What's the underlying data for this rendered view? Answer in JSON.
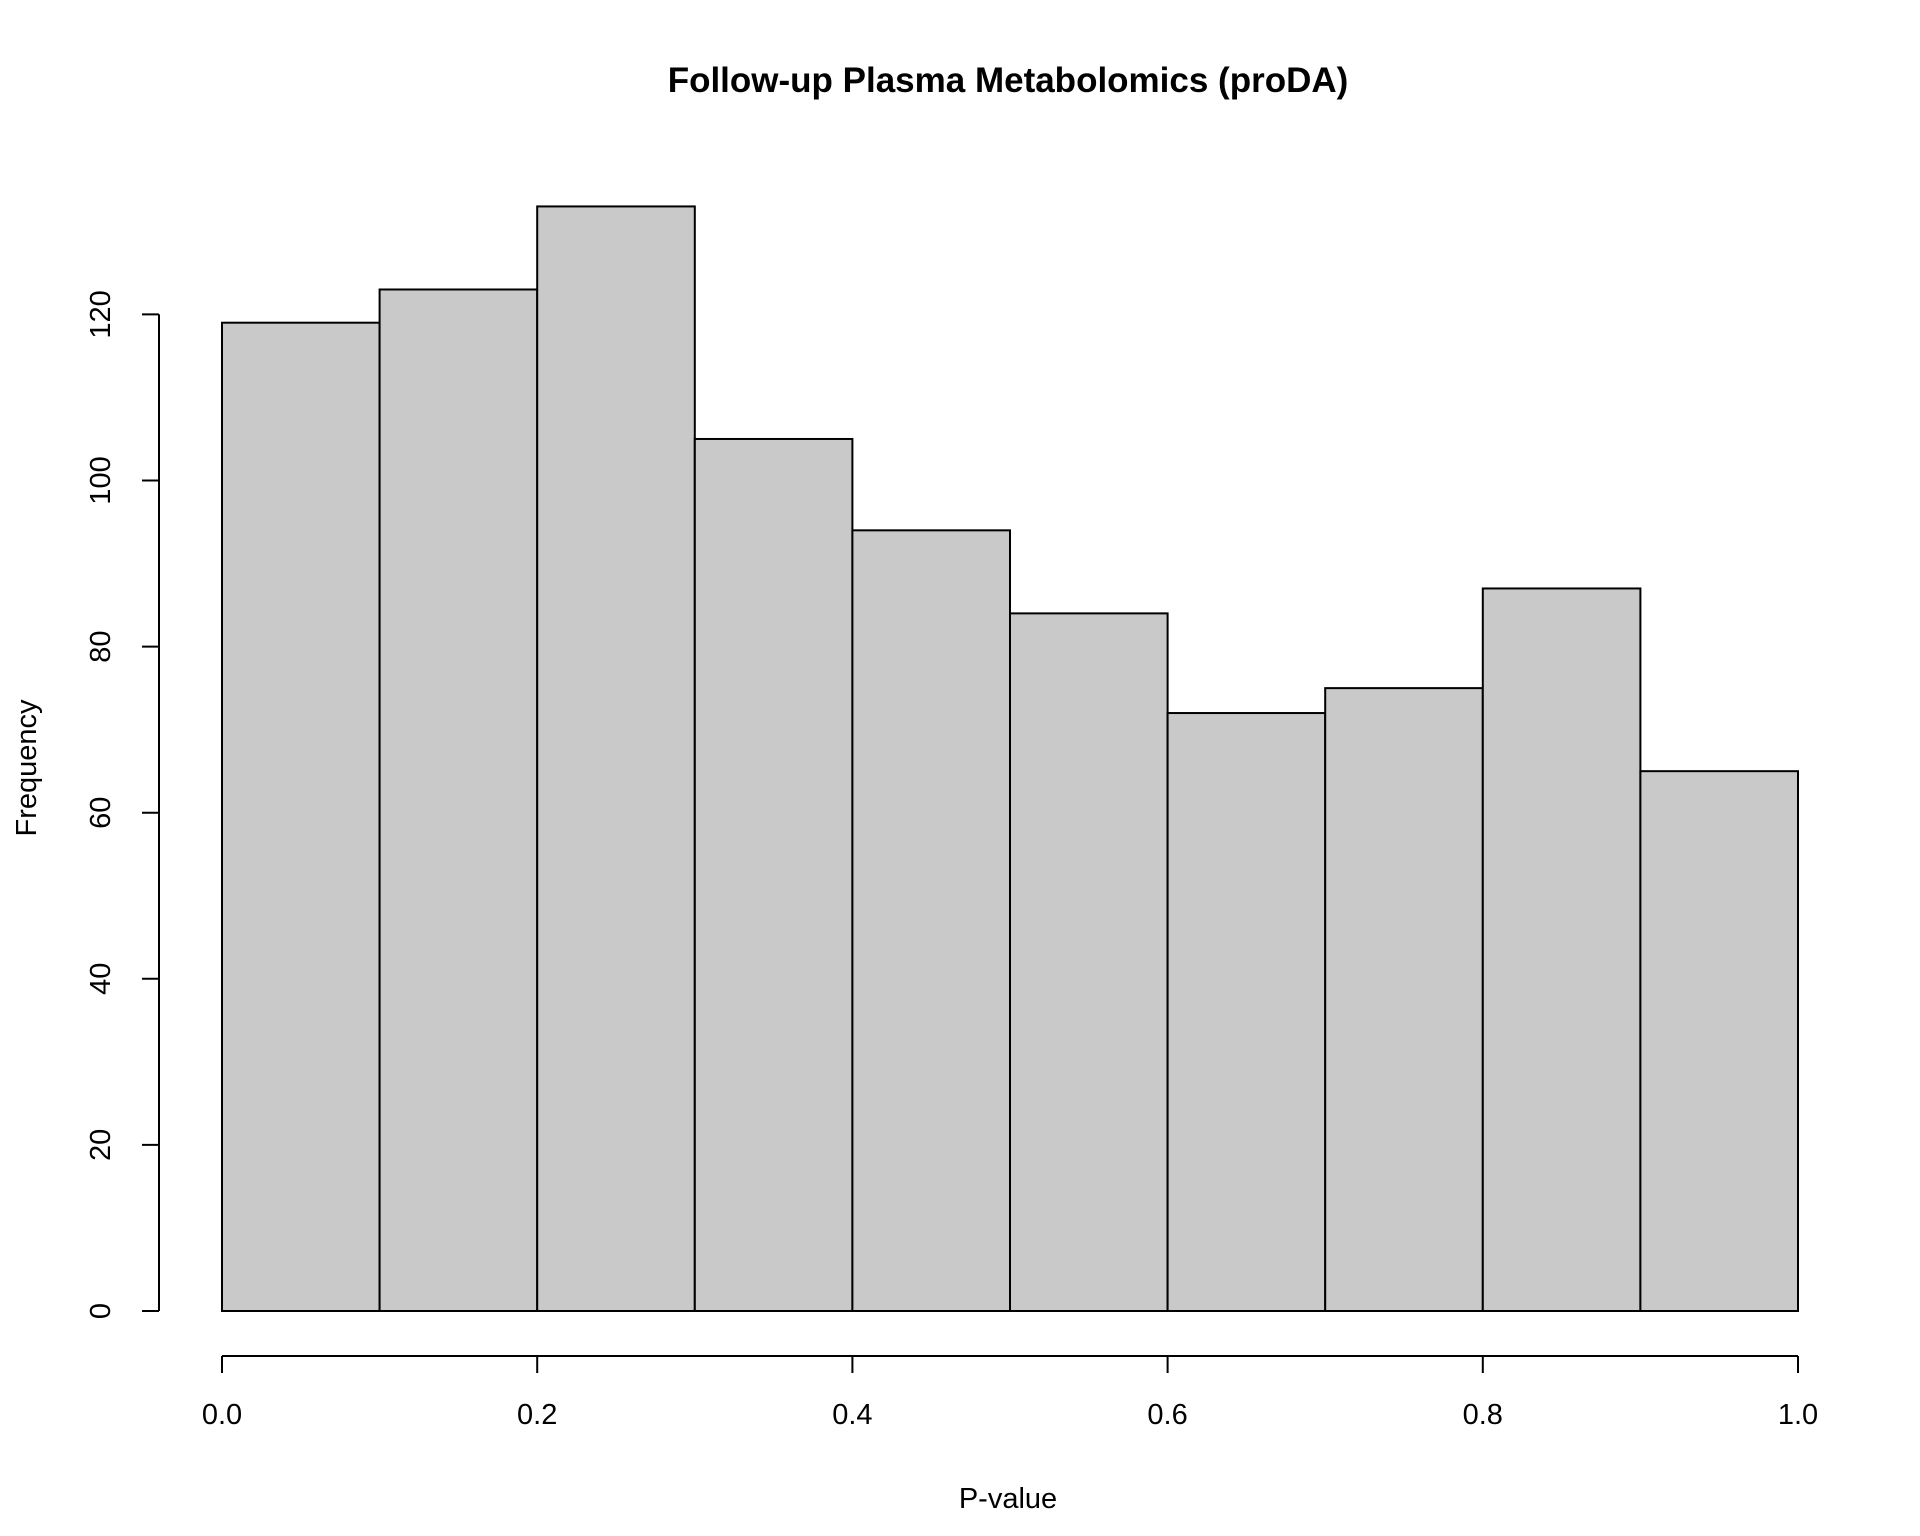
{
  "chart_data": {
    "type": "bar",
    "title": "Follow-up Plasma Metabolomics (proDA)",
    "xlabel": "P-value",
    "ylabel": "Frequency",
    "bins": [
      {
        "start": 0.0,
        "end": 0.1,
        "count": 119
      },
      {
        "start": 0.1,
        "end": 0.2,
        "count": 123
      },
      {
        "start": 0.2,
        "end": 0.3,
        "count": 133
      },
      {
        "start": 0.3,
        "end": 0.4,
        "count": 105
      },
      {
        "start": 0.4,
        "end": 0.5,
        "count": 94
      },
      {
        "start": 0.5,
        "end": 0.6,
        "count": 84
      },
      {
        "start": 0.6,
        "end": 0.7,
        "count": 72
      },
      {
        "start": 0.7,
        "end": 0.8,
        "count": 75
      },
      {
        "start": 0.8,
        "end": 0.9,
        "count": 87
      },
      {
        "start": 0.9,
        "end": 1.0,
        "count": 65
      }
    ],
    "xlim": [
      0.0,
      1.0
    ],
    "ylim": [
      0,
      133
    ],
    "x_ticks": [
      "0.0",
      "0.2",
      "0.4",
      "0.6",
      "0.8",
      "1.0"
    ],
    "y_ticks": [
      "0",
      "20",
      "40",
      "60",
      "80",
      "100",
      "120"
    ],
    "bar_color": "#c9c9c9",
    "border_color": "#000000",
    "grid": false
  }
}
